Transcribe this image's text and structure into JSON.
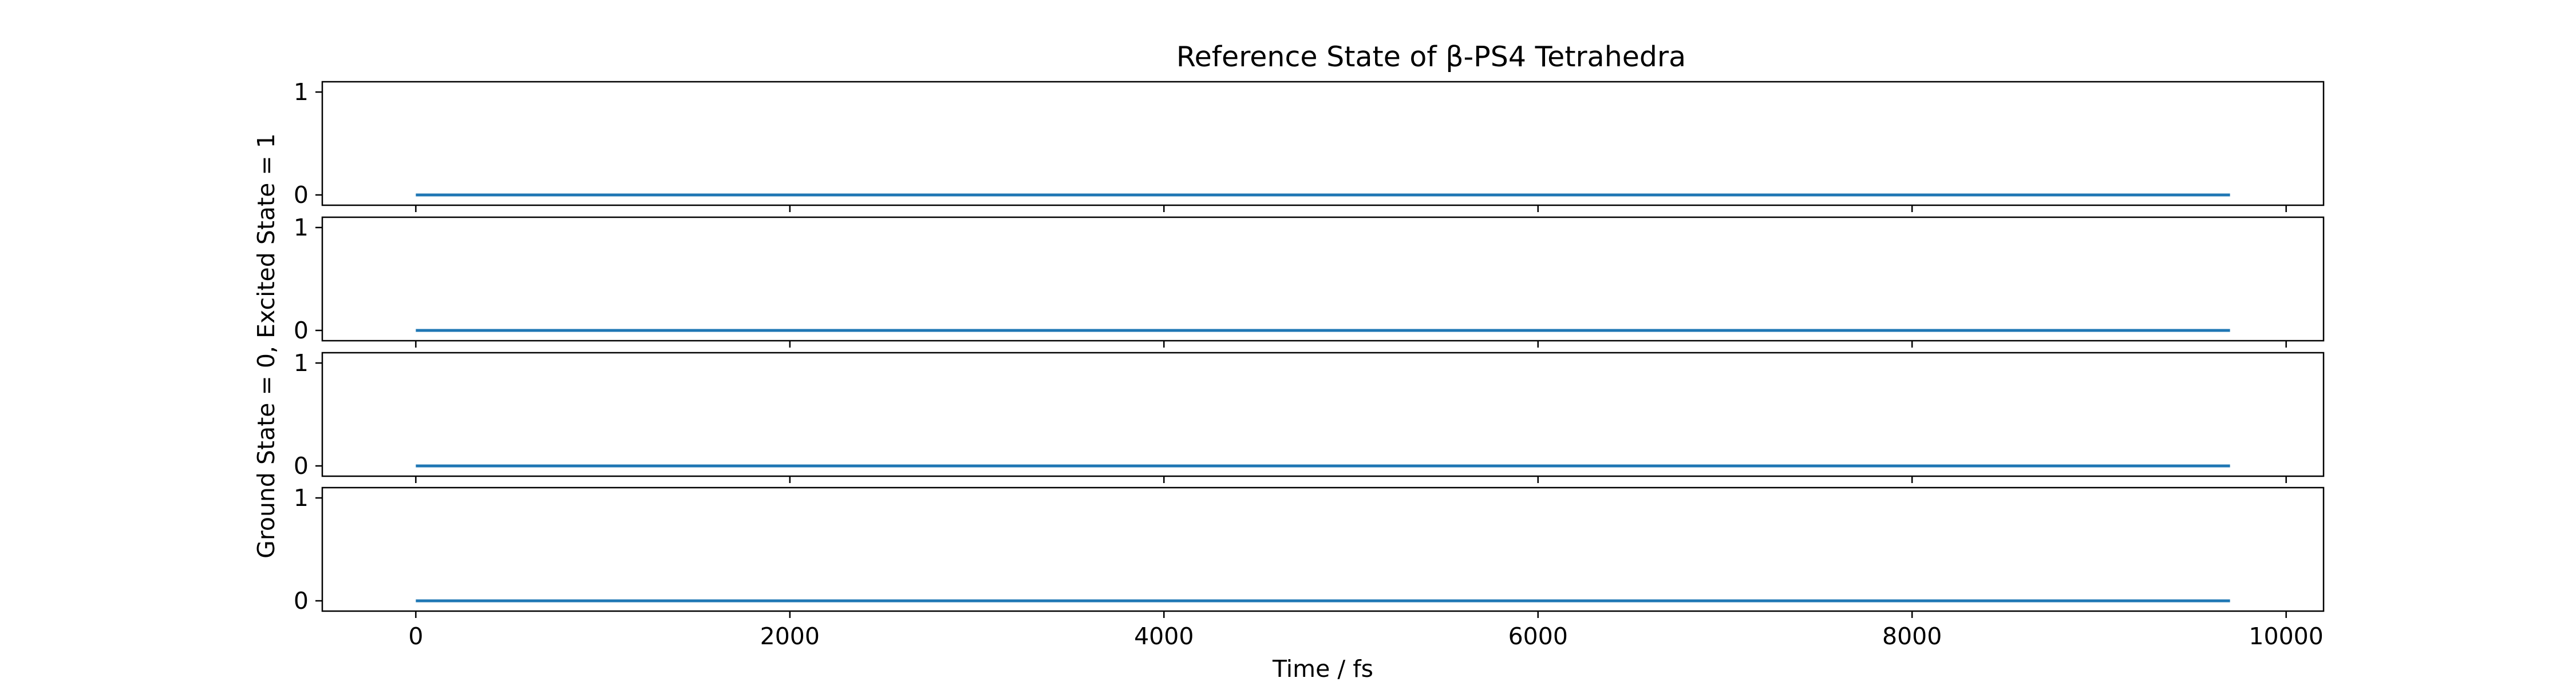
{
  "figure": {
    "title": "Reference State of β-PS4 Tetrahedra",
    "xlabel": "Time / fs",
    "ylabel": "Ground State = 0, Excited State = 1"
  },
  "chart_data": {
    "type": "line",
    "title": "Reference State of β-PS4 Tetrahedra",
    "xlabel": "Time / fs",
    "ylabel": "Ground State = 0, Excited State = 1",
    "xlim": [
      -500,
      10200
    ],
    "ylim": [
      -0.1,
      1.1
    ],
    "xticks": [
      0,
      2000,
      4000,
      6000,
      8000,
      10000
    ],
    "xtick_labels": [
      "0",
      "2000",
      "4000",
      "6000",
      "8000",
      "10000"
    ],
    "yticks": [
      0,
      1
    ],
    "ytick_labels": [
      "0",
      "1"
    ],
    "sharex": true,
    "grid": false,
    "line_color": "#1f77b4",
    "panels": [
      {
        "x": [
          0,
          9700
        ],
        "y": [
          0,
          0
        ]
      },
      {
        "x": [
          0,
          9700
        ],
        "y": [
          0,
          0
        ]
      },
      {
        "x": [
          0,
          9700
        ],
        "y": [
          0,
          0
        ]
      },
      {
        "x": [
          0,
          9700
        ],
        "y": [
          0,
          0
        ]
      }
    ]
  }
}
